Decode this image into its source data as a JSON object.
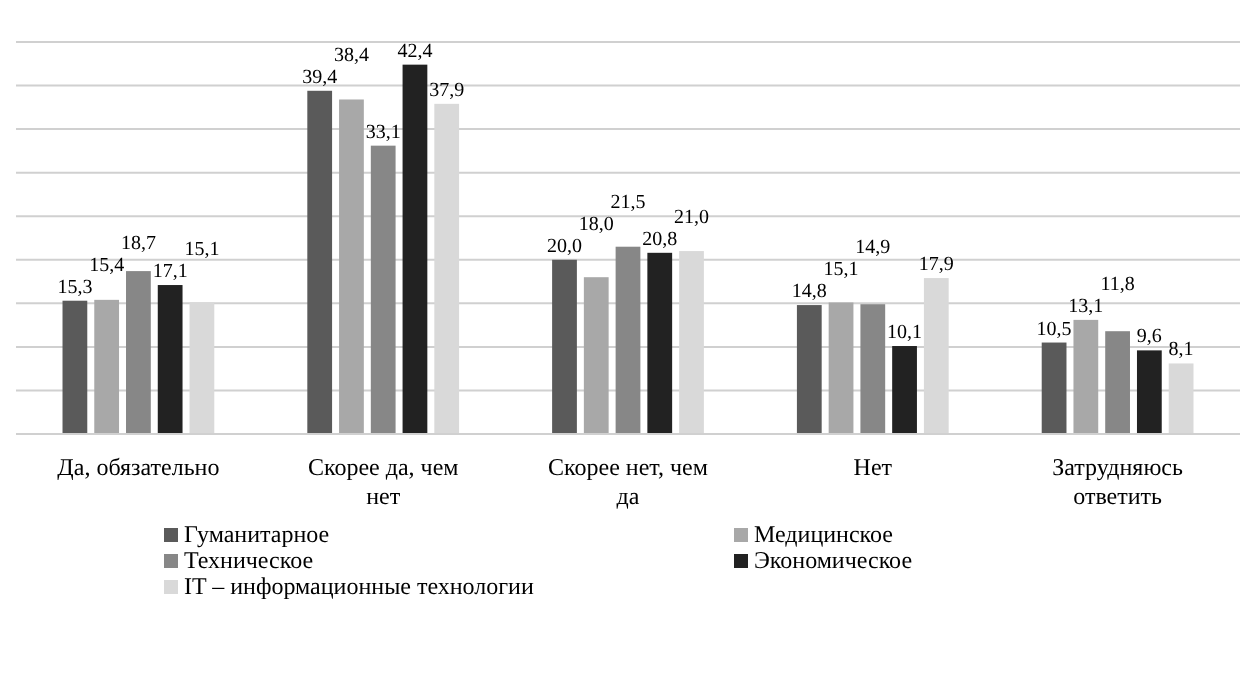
{
  "chart_data": {
    "type": "bar",
    "categories": [
      "Да, обязательно",
      "Скорее да, чем нет",
      "Скорее нет, чем да",
      "Нет",
      "Затрудняюсь ответить"
    ],
    "series": [
      {
        "name": "Гуманитарное",
        "color": "#5a5a5a",
        "values": [
          15.3,
          39.4,
          20.0,
          14.8,
          10.5
        ],
        "value_labels": [
          "15,3",
          "39,4",
          "20,0",
          "14,8",
          "10,5"
        ]
      },
      {
        "name": "Медицинское",
        "color": "#a8a8a8",
        "values": [
          15.4,
          38.4,
          18.0,
          15.1,
          13.1
        ],
        "value_labels": [
          "15,4",
          "38,4",
          "18,0",
          "15,1",
          "13,1"
        ]
      },
      {
        "name": "Техническое",
        "color": "#878787",
        "values": [
          18.7,
          33.1,
          21.5,
          14.9,
          11.8
        ],
        "value_labels": [
          "18,7",
          "33,1",
          "21,5",
          "14,9",
          "11,8"
        ]
      },
      {
        "name": "Экономическое",
        "color": "#222222",
        "values": [
          17.1,
          42.4,
          20.8,
          10.1,
          9.6
        ],
        "value_labels": [
          "17,1",
          "42,4",
          "20,8",
          "10,1",
          "9,6"
        ]
      },
      {
        "name": "IT – информационные технологии",
        "color": "#d9d9d9",
        "values": [
          15.1,
          37.9,
          21.0,
          17.9,
          8.1
        ],
        "value_labels": [
          "15,1",
          "37,9",
          "21,0",
          "17,9",
          "8,1"
        ]
      }
    ],
    "ylim": [
      0,
      45
    ],
    "yticks": [
      {
        "value": 0,
        "label": null
      },
      {
        "value": 5,
        "label": null
      },
      {
        "value": 10,
        "label": null
      },
      {
        "value": 15,
        "label": null
      },
      {
        "value": 20,
        "label": null
      },
      {
        "value": 25,
        "label": null
      },
      {
        "value": 30,
        "label": null
      },
      {
        "value": 35,
        "label": null
      },
      {
        "value": 40,
        "label": null
      },
      {
        "value": 45,
        "label": null
      }
    ],
    "grid": "y",
    "tick_labels": "x",
    "legend": "bottom"
  }
}
